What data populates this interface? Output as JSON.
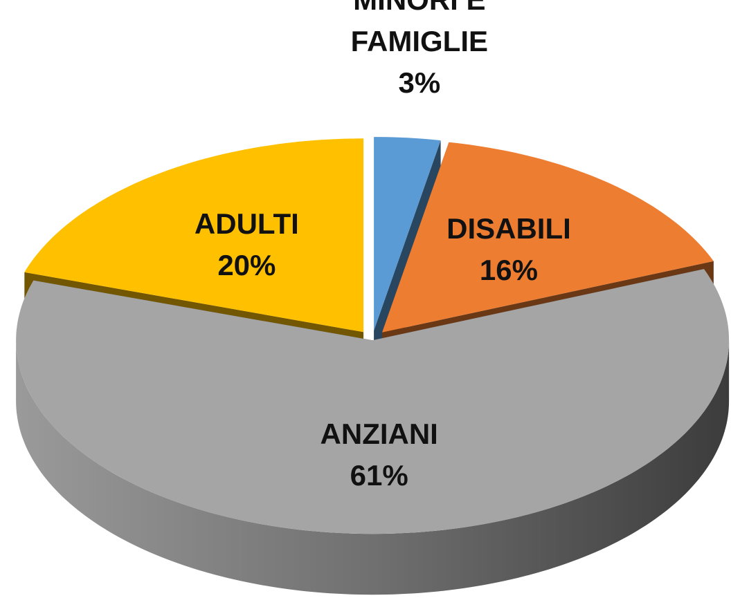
{
  "chart_data": {
    "type": "pie",
    "categories": [
      "MINORI E FAMIGLIE",
      "DISABILI",
      "ANZIANI",
      "ADULTI"
    ],
    "values": [
      3,
      16,
      61,
      20
    ],
    "value_labels": [
      "3%",
      "16%",
      "61%",
      "20%"
    ],
    "colors": [
      "#5b9bd5",
      "#ed7d31",
      "#a5a5a5",
      "#ffc000"
    ]
  }
}
